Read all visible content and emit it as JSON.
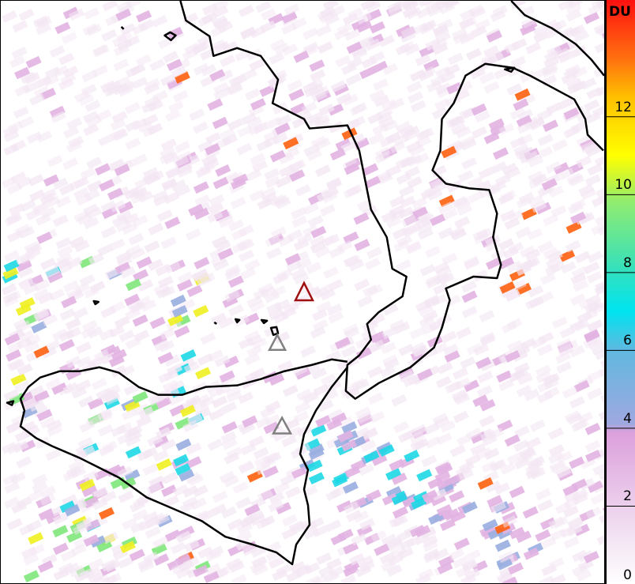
{
  "colorbar": {
    "unit": "DU",
    "range": [
      0,
      15
    ],
    "ticks": [
      "0",
      "2",
      "4",
      "6",
      "8",
      "10",
      "12"
    ],
    "bands": [
      {
        "from": 0,
        "to": 2,
        "color": "#f3e6f3"
      },
      {
        "from": 2,
        "to": 4,
        "color": "#e2b4e2"
      },
      {
        "from": 4,
        "to": 6,
        "color": "#99aee0"
      },
      {
        "from": 6,
        "to": 8,
        "color": "#1ed8e6"
      },
      {
        "from": 8,
        "to": 10,
        "color": "#7ee77a"
      },
      {
        "from": 10,
        "to": 12,
        "color": "#f0f020"
      },
      {
        "from": 12,
        "to": 15,
        "color": "#ff6010"
      }
    ]
  },
  "map": {
    "coastline_color": "#000000",
    "volcanoes": [
      {
        "name_hint": "active",
        "color": "#a01010"
      },
      {
        "name_hint": "inactive",
        "color": "#808080"
      },
      {
        "name_hint": "inactive",
        "color": "#808080"
      }
    ]
  }
}
